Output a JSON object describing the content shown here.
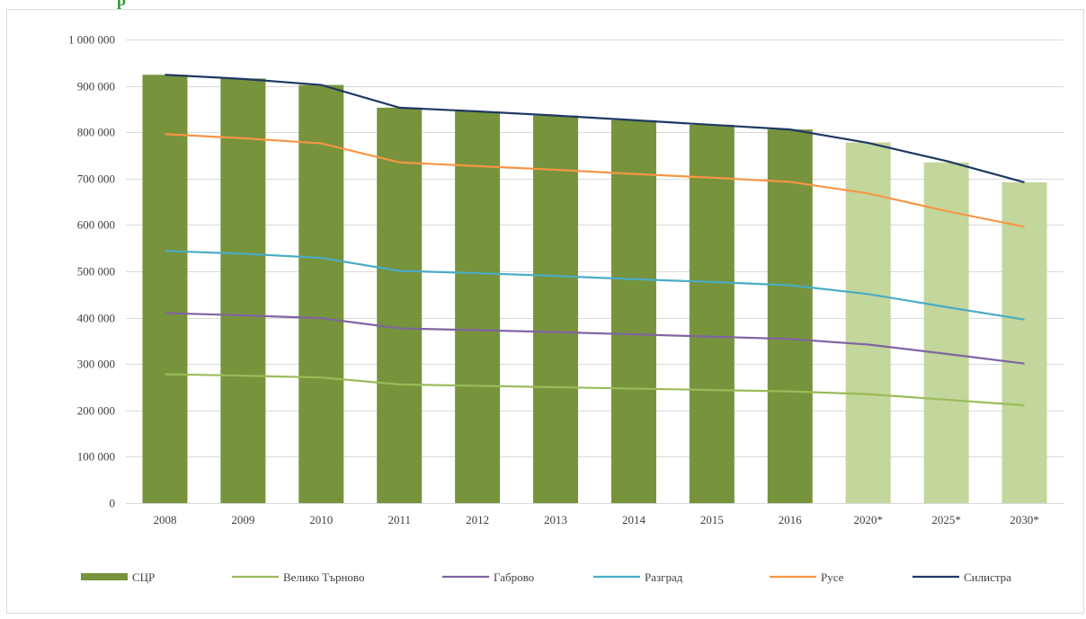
{
  "page": {
    "top_text_fragment": "р"
  },
  "colors": {
    "bar_actual": "#77933c",
    "bar_forecast": "#c3d69b",
    "gridline": "#d9d9d9",
    "axis_text": "#404040",
    "border": "#d9d9d9"
  },
  "chart_data": {
    "type": "bar",
    "title": "",
    "xlabel": "",
    "ylabel": "",
    "categories": [
      "2008",
      "2009",
      "2010",
      "2011",
      "2012",
      "2013",
      "2014",
      "2015",
      "2016",
      "2020*",
      "2025*",
      "2030*"
    ],
    "ylim": [
      0,
      1000000
    ],
    "yticks": [
      0,
      100000,
      200000,
      300000,
      400000,
      500000,
      600000,
      700000,
      800000,
      900000,
      1000000
    ],
    "ytick_labels": [
      "0",
      "100 000",
      "200 000",
      "300 000",
      "400 000",
      "500 000",
      "600 000",
      "700 000",
      "800 000",
      "900 000",
      "1 000 000"
    ],
    "grid": true,
    "legend_position": "bottom",
    "bars": {
      "name": "СЦР",
      "values": [
        924000,
        916000,
        902000,
        853000,
        845000,
        836000,
        826000,
        816000,
        806000,
        778000,
        735000,
        692000
      ],
      "forecast_from_index": 9,
      "color": "#77933c",
      "forecast_color": "#c3d69b"
    },
    "series": [
      {
        "name": "Велико Търново",
        "color": "#9bbb59",
        "values": [
          278000,
          275000,
          271000,
          256000,
          253000,
          250000,
          247000,
          244000,
          241000,
          235000,
          223000,
          211000
        ]
      },
      {
        "name": "Габрово",
        "color": "#8064a2",
        "values": [
          410000,
          405000,
          399000,
          377000,
          373000,
          369000,
          364000,
          359000,
          354000,
          342000,
          322000,
          301000
        ]
      },
      {
        "name": "Разград",
        "color": "#4bacc6",
        "values": [
          544000,
          538000,
          529000,
          501000,
          496000,
          490000,
          483000,
          477000,
          470000,
          451000,
          423000,
          396000
        ]
      },
      {
        "name": "Русе",
        "color": "#f79646",
        "values": [
          796000,
          787000,
          776000,
          735000,
          727000,
          719000,
          710000,
          702000,
          693000,
          668000,
          630000,
          596000
        ]
      },
      {
        "name": "Силистра",
        "color": "#1f3864",
        "values": [
          924000,
          915000,
          902000,
          853000,
          845000,
          836000,
          826000,
          816000,
          806000,
          777000,
          738000,
          692000
        ]
      }
    ]
  }
}
